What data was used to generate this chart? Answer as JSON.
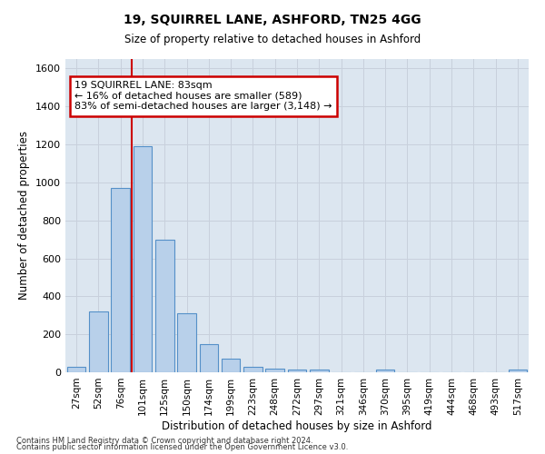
{
  "title1": "19, SQUIRREL LANE, ASHFORD, TN25 4GG",
  "title2": "Size of property relative to detached houses in Ashford",
  "xlabel": "Distribution of detached houses by size in Ashford",
  "ylabel": "Number of detached properties",
  "footnote1": "Contains HM Land Registry data © Crown copyright and database right 2024.",
  "footnote2": "Contains public sector information licensed under the Open Government Licence v3.0.",
  "bar_labels": [
    "27sqm",
    "52sqm",
    "76sqm",
    "101sqm",
    "125sqm",
    "150sqm",
    "174sqm",
    "199sqm",
    "223sqm",
    "248sqm",
    "272sqm",
    "297sqm",
    "321sqm",
    "346sqm",
    "370sqm",
    "395sqm",
    "419sqm",
    "444sqm",
    "468sqm",
    "493sqm",
    "517sqm"
  ],
  "bar_values": [
    30,
    320,
    970,
    1190,
    700,
    310,
    150,
    70,
    30,
    20,
    15,
    15,
    0,
    0,
    12,
    0,
    0,
    0,
    0,
    0,
    12
  ],
  "bar_color": "#b8d0ea",
  "bar_edge_color": "#5590c8",
  "ylim_max": 1650,
  "yticks": [
    0,
    200,
    400,
    600,
    800,
    1000,
    1200,
    1400,
    1600
  ],
  "vline_x": 2.5,
  "annotation_line1": "19 SQUIRREL LANE: 83sqm",
  "annotation_line2": "← 16% of detached houses are smaller (589)",
  "annotation_line3": "83% of semi-detached houses are larger (3,148) →",
  "annotation_box_color": "#ffffff",
  "annotation_box_edge": "#cc0000",
  "vline_color": "#cc0000",
  "grid_color": "#c8d0dc",
  "plot_bg_color": "#dce6f0",
  "fig_bg_color": "#ffffff"
}
